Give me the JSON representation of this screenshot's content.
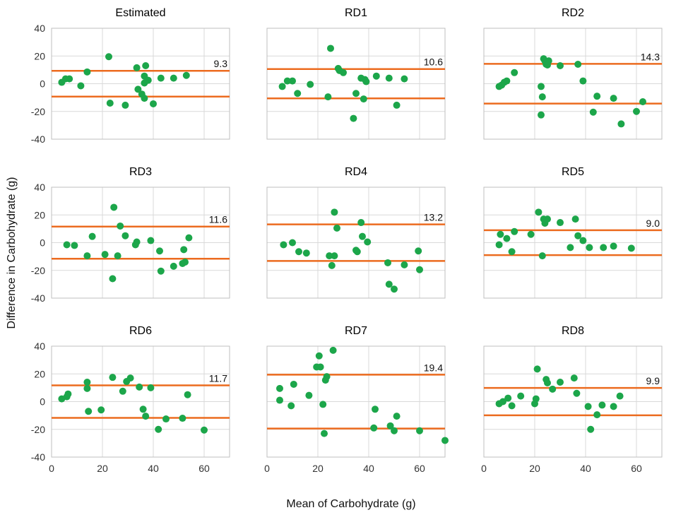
{
  "figure": {
    "ylabel": "Difference in Carbohydrate (g)",
    "xlabel": "Mean of Carbohydrate (g)"
  },
  "style": {
    "point_color": "#1ca64a",
    "line_color": "#ec6b1f",
    "grid_color": "#d9d9d9",
    "frame_color": "#bfbfbf"
  },
  "chart_data": [
    {
      "type": "scatter",
      "title": "Estimated",
      "xlim": [
        0,
        70
      ],
      "ylim": [
        -40,
        40
      ],
      "xticks": [
        0,
        20,
        40,
        60
      ],
      "yticks": [
        -40,
        -20,
        0,
        20,
        40
      ],
      "limit": 9.3,
      "limit_label": "9.3",
      "points": [
        [
          4,
          1
        ],
        [
          5.5,
          3.5
        ],
        [
          7,
          3.5
        ],
        [
          11.5,
          -1.5
        ],
        [
          14,
          8.5
        ],
        [
          22.5,
          19.5
        ],
        [
          23,
          -14
        ],
        [
          29,
          -15.5
        ],
        [
          33.5,
          11.5
        ],
        [
          34,
          -4
        ],
        [
          35.5,
          -7.5
        ],
        [
          36.5,
          -10.5
        ],
        [
          36.5,
          5.5
        ],
        [
          36.5,
          0.5
        ],
        [
          37,
          13
        ],
        [
          38,
          2.5
        ],
        [
          40,
          -14.5
        ],
        [
          43,
          4
        ],
        [
          48,
          4
        ],
        [
          53,
          6
        ]
      ]
    },
    {
      "type": "scatter",
      "title": "RD1",
      "xlim": [
        0,
        70
      ],
      "ylim": [
        -40,
        40
      ],
      "xticks": [
        0,
        20,
        40,
        60
      ],
      "yticks": [
        -40,
        -20,
        0,
        20,
        40
      ],
      "limit": 10.6,
      "limit_label": "10.6",
      "points": [
        [
          6,
          -2
        ],
        [
          8,
          2
        ],
        [
          10,
          2
        ],
        [
          12,
          -7
        ],
        [
          17,
          -0.5
        ],
        [
          24,
          -9.5
        ],
        [
          25,
          25.5
        ],
        [
          28,
          11
        ],
        [
          28.5,
          9.5
        ],
        [
          30,
          8
        ],
        [
          34,
          -25
        ],
        [
          35,
          -7
        ],
        [
          37,
          4
        ],
        [
          38,
          -11
        ],
        [
          38.5,
          3
        ],
        [
          39,
          1.5
        ],
        [
          43,
          5.5
        ],
        [
          48,
          4
        ],
        [
          51,
          -15.5
        ],
        [
          54,
          3.5
        ]
      ]
    },
    {
      "type": "scatter",
      "title": "RD2",
      "xlim": [
        0,
        70
      ],
      "ylim": [
        -40,
        40
      ],
      "xticks": [
        0,
        20,
        40,
        60
      ],
      "yticks": [
        -40,
        -20,
        0,
        20,
        40
      ],
      "limit": 14.3,
      "limit_label": "14.3",
      "points": [
        [
          6,
          -2
        ],
        [
          7,
          -1
        ],
        [
          8,
          1
        ],
        [
          9,
          2
        ],
        [
          12,
          8
        ],
        [
          22.5,
          -2
        ],
        [
          22.5,
          -22.5
        ],
        [
          23,
          -9.5
        ],
        [
          23.5,
          18
        ],
        [
          24,
          16.5
        ],
        [
          24.5,
          14
        ],
        [
          25,
          13.5
        ],
        [
          25.5,
          16.5
        ],
        [
          30,
          13
        ],
        [
          37,
          14
        ],
        [
          39,
          2
        ],
        [
          43,
          -20.5
        ],
        [
          44.5,
          -9
        ],
        [
          51,
          -10.5
        ],
        [
          54,
          -29
        ],
        [
          60,
          -20
        ],
        [
          62.5,
          -13
        ]
      ]
    },
    {
      "type": "scatter",
      "title": "RD3",
      "xlim": [
        0,
        70
      ],
      "ylim": [
        -40,
        40
      ],
      "xticks": [
        0,
        20,
        40,
        60
      ],
      "yticks": [
        -40,
        -20,
        0,
        20,
        40
      ],
      "limit": 11.6,
      "limit_label": "11.6",
      "points": [
        [
          6,
          -1.5
        ],
        [
          9,
          -2
        ],
        [
          14,
          -9.5
        ],
        [
          16,
          4.5
        ],
        [
          21,
          -8.5
        ],
        [
          24,
          -26
        ],
        [
          24.5,
          25.5
        ],
        [
          26,
          -9.5
        ],
        [
          27,
          12
        ],
        [
          29,
          5
        ],
        [
          33,
          -1.5
        ],
        [
          33.5,
          0.5
        ],
        [
          39,
          1.5
        ],
        [
          42.5,
          -6
        ],
        [
          43,
          -20.5
        ],
        [
          48,
          -17
        ],
        [
          51.5,
          -15
        ],
        [
          52,
          -5
        ],
        [
          52.5,
          -14
        ],
        [
          54,
          3.5
        ]
      ]
    },
    {
      "type": "scatter",
      "title": "RD4",
      "xlim": [
        0,
        70
      ],
      "ylim": [
        -40,
        40
      ],
      "xticks": [
        0,
        20,
        40,
        60
      ],
      "yticks": [
        -40,
        -20,
        0,
        20,
        40
      ],
      "limit": 13.2,
      "limit_label": "13.2",
      "points": [
        [
          6.5,
          -1.5
        ],
        [
          10,
          0
        ],
        [
          12.5,
          -6.5
        ],
        [
          15.5,
          -7.5
        ],
        [
          24.5,
          -9.5
        ],
        [
          25.5,
          -16.5
        ],
        [
          26.5,
          -9.5
        ],
        [
          26.5,
          22
        ],
        [
          27.5,
          10.5
        ],
        [
          35,
          -5.5
        ],
        [
          35.5,
          -6.5
        ],
        [
          37,
          14.5
        ],
        [
          37.5,
          4.5
        ],
        [
          39.5,
          0.5
        ],
        [
          47.5,
          -14.5
        ],
        [
          48,
          -30
        ],
        [
          50,
          -33.5
        ],
        [
          54,
          -16
        ],
        [
          59.5,
          -6
        ],
        [
          60,
          -19.5
        ]
      ]
    },
    {
      "type": "scatter",
      "title": "RD5",
      "xlim": [
        0,
        70
      ],
      "ylim": [
        -40,
        40
      ],
      "xticks": [
        0,
        20,
        40,
        60
      ],
      "yticks": [
        -40,
        -20,
        0,
        20,
        40
      ],
      "limit": 9.0,
      "limit_label": "9.0",
      "points": [
        [
          6,
          -1.5
        ],
        [
          6.5,
          6
        ],
        [
          9,
          3
        ],
        [
          11,
          -6.5
        ],
        [
          12,
          8
        ],
        [
          18.5,
          6
        ],
        [
          21.5,
          22
        ],
        [
          23,
          -9.5
        ],
        [
          23.5,
          17
        ],
        [
          24,
          14
        ],
        [
          25,
          17
        ],
        [
          30,
          14.5
        ],
        [
          34,
          -3.5
        ],
        [
          36,
          17
        ],
        [
          37,
          5
        ],
        [
          39,
          1.5
        ],
        [
          41.5,
          -3.5
        ],
        [
          47,
          -3.5
        ],
        [
          51,
          -2.5
        ],
        [
          58,
          -4
        ]
      ]
    },
    {
      "type": "scatter",
      "title": "RD6",
      "xlim": [
        0,
        70
      ],
      "ylim": [
        -40,
        40
      ],
      "xticks": [
        0,
        20,
        40,
        60
      ],
      "yticks": [
        -40,
        -20,
        0,
        20,
        40
      ],
      "limit": 11.7,
      "limit_label": "11.7",
      "points": [
        [
          4,
          2
        ],
        [
          6,
          3.5
        ],
        [
          6.5,
          5.5
        ],
        [
          14,
          9.5
        ],
        [
          14,
          14
        ],
        [
          14.5,
          -7
        ],
        [
          19.5,
          -6
        ],
        [
          24,
          17.5
        ],
        [
          28,
          7.5
        ],
        [
          29.5,
          14.5
        ],
        [
          31,
          17
        ],
        [
          34.5,
          10.5
        ],
        [
          36,
          -5.5
        ],
        [
          37,
          -10.5
        ],
        [
          39,
          10
        ],
        [
          42,
          -20
        ],
        [
          45,
          -12.5
        ],
        [
          51.5,
          -12
        ],
        [
          53.5,
          5
        ],
        [
          60,
          -20.5
        ]
      ]
    },
    {
      "type": "scatter",
      "title": "RD7",
      "xlim": [
        0,
        70
      ],
      "ylim": [
        -40,
        40
      ],
      "xticks": [
        0,
        20,
        40,
        60
      ],
      "yticks": [
        -40,
        -20,
        0,
        20,
        40
      ],
      "limit": 19.4,
      "limit_label": "19.4",
      "points": [
        [
          5,
          9.5
        ],
        [
          5,
          1
        ],
        [
          9.5,
          -3
        ],
        [
          10.5,
          12.5
        ],
        [
          16.5,
          4.5
        ],
        [
          19.5,
          25
        ],
        [
          20.5,
          33
        ],
        [
          21,
          25
        ],
        [
          22,
          -2
        ],
        [
          22.5,
          -23
        ],
        [
          23,
          15.5
        ],
        [
          23.5,
          18
        ],
        [
          26,
          37
        ],
        [
          42.5,
          -5.5
        ],
        [
          42,
          -19
        ],
        [
          48.5,
          -17.5
        ],
        [
          50,
          -21
        ],
        [
          51,
          -10.5
        ],
        [
          60,
          -21
        ],
        [
          70,
          -28
        ]
      ]
    },
    {
      "type": "scatter",
      "title": "RD8",
      "xlim": [
        0,
        70
      ],
      "ylim": [
        -40,
        40
      ],
      "xticks": [
        0,
        20,
        40,
        60
      ],
      "yticks": [
        -40,
        -20,
        0,
        20,
        40
      ],
      "limit": 9.9,
      "limit_label": "9.9",
      "points": [
        [
          6,
          -1.5
        ],
        [
          7.5,
          0
        ],
        [
          9.5,
          2.5
        ],
        [
          11,
          -3
        ],
        [
          14.5,
          4
        ],
        [
          20,
          -1.5
        ],
        [
          20.5,
          2
        ],
        [
          21,
          23.5
        ],
        [
          24.5,
          16
        ],
        [
          25,
          13.5
        ],
        [
          27,
          9
        ],
        [
          30,
          14
        ],
        [
          35.5,
          17
        ],
        [
          36.5,
          6
        ],
        [
          41,
          -3.5
        ],
        [
          42,
          -20
        ],
        [
          44.5,
          -9.5
        ],
        [
          46.5,
          -2.5
        ],
        [
          51,
          -3.5
        ],
        [
          53.5,
          4
        ]
      ]
    }
  ]
}
